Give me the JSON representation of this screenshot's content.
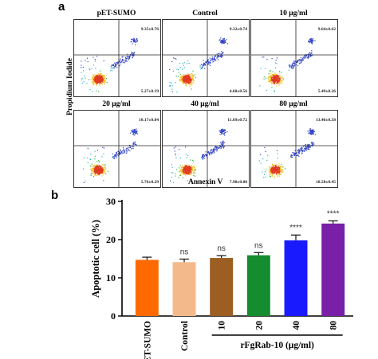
{
  "panel_a": {
    "letter": "a",
    "y_axis_label": "Propidium Iodide",
    "x_axis_label": "Annexin V",
    "plots": [
      {
        "title": "pET-SUMO",
        "top_right": "9.35±0.76",
        "bottom_right": "5.27±0.19"
      },
      {
        "title": "Control",
        "top_right": "9.32±0.74",
        "bottom_right": "4.60±0.56"
      },
      {
        "title": "10 μg/ml",
        "top_right": "9.64±0.62",
        "bottom_right": "5.49±0.26"
      },
      {
        "title": "20 μg/ml",
        "top_right": "10.17±0.84",
        "bottom_right": "5.76±0.29"
      },
      {
        "title": "40 μg/ml",
        "top_right": "11.69±0.72",
        "bottom_right": "7.90±0.88"
      },
      {
        "title": "80 μg/ml",
        "top_right": "13.46±0.58",
        "bottom_right": "10.58±0.45"
      }
    ]
  },
  "panel_b": {
    "letter": "b"
  },
  "chart_data": {
    "type": "bar",
    "categories": [
      "pET-SUMO",
      "Control",
      "10",
      "20",
      "40",
      "80"
    ],
    "values": [
      14.7,
      14.1,
      15.2,
      15.9,
      19.8,
      24.2
    ],
    "errors": [
      0.7,
      0.8,
      0.6,
      0.7,
      1.4,
      0.7
    ],
    "significance": [
      "",
      "ns",
      "ns",
      "ns",
      "****",
      "****"
    ],
    "colors": [
      "#ff6a00",
      "#f4b98a",
      "#9c5e22",
      "#148c2f",
      "#1a1aff",
      "#7a1fa8"
    ],
    "ylabel": "Apoptotic cell (%)",
    "xlabel_group": "rFgRab-10 (μg/ml)",
    "ylim": [
      0,
      30
    ],
    "yticks": [
      0,
      10,
      20,
      30
    ]
  }
}
